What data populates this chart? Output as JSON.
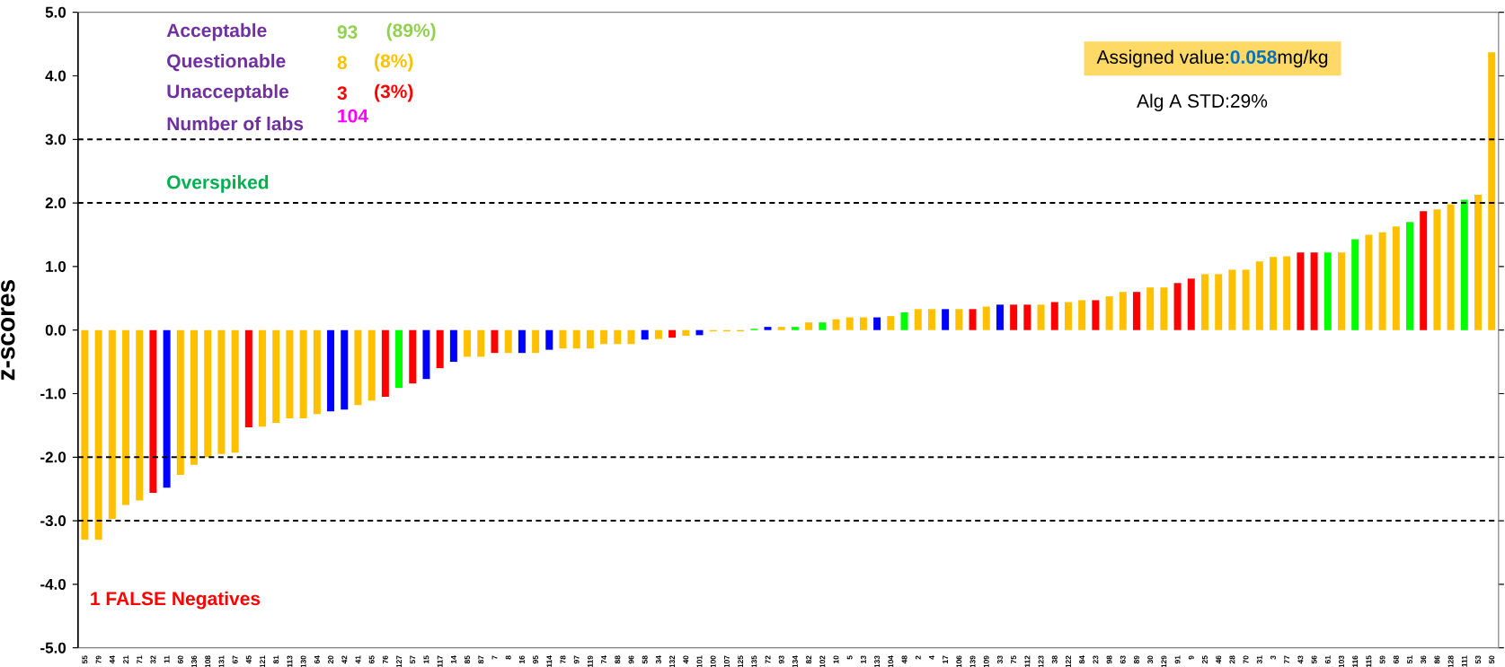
{
  "chart_data": {
    "type": "bar",
    "ylabel": "z-scores",
    "categories": [
      "55",
      "79",
      "44",
      "21",
      "71",
      "32",
      "11",
      "60",
      "136",
      "108",
      "131",
      "67",
      "45",
      "121",
      "81",
      "113",
      "130",
      "64",
      "20",
      "42",
      "41",
      "65",
      "76",
      "127",
      "57",
      "15",
      "117",
      "14",
      "85",
      "87",
      "7",
      "8",
      "16",
      "95",
      "114",
      "78",
      "97",
      "119",
      "74",
      "88",
      "96",
      "58",
      "34",
      "132",
      "40",
      "101",
      "100",
      "107",
      "125",
      "135",
      "72",
      "93",
      "134",
      "82",
      "102",
      "10",
      "5",
      "13",
      "133",
      "104",
      "48",
      "2",
      "4",
      "17",
      "106",
      "139",
      "109",
      "33",
      "75",
      "112",
      "123",
      "38",
      "122",
      "84",
      "23",
      "98",
      "63",
      "89",
      "30",
      "129",
      "91",
      "9",
      "25",
      "46",
      "28",
      "70",
      "31",
      "3",
      "77",
      "43",
      "56",
      "61",
      "103",
      "116",
      "115",
      "59",
      "68",
      "51",
      "36",
      "86",
      "128",
      "111",
      "53",
      "50"
    ],
    "values": [
      -3.3,
      -3.3,
      -2.97,
      -2.75,
      -2.68,
      -2.56,
      -2.48,
      -2.28,
      -2.12,
      -2.0,
      -1.95,
      -1.93,
      -1.53,
      -1.52,
      -1.46,
      -1.39,
      -1.39,
      -1.32,
      -1.28,
      -1.25,
      -1.18,
      -1.11,
      -1.05,
      -0.91,
      -0.84,
      -0.77,
      -0.6,
      -0.5,
      -0.42,
      -0.42,
      -0.36,
      -0.36,
      -0.36,
      -0.36,
      -0.31,
      -0.29,
      -0.29,
      -0.29,
      -0.22,
      -0.22,
      -0.22,
      -0.15,
      -0.14,
      -0.12,
      -0.09,
      -0.08,
      -0.02,
      -0.02,
      -0.02,
      0.02,
      0.05,
      0.05,
      0.05,
      0.12,
      0.12,
      0.17,
      0.2,
      0.2,
      0.2,
      0.22,
      0.28,
      0.33,
      0.33,
      0.33,
      0.33,
      0.33,
      0.37,
      0.4,
      0.4,
      0.4,
      0.4,
      0.44,
      0.44,
      0.47,
      0.47,
      0.53,
      0.6,
      0.6,
      0.67,
      0.67,
      0.74,
      0.81,
      0.88,
      0.88,
      0.95,
      0.95,
      1.08,
      1.15,
      1.16,
      1.22,
      1.22,
      1.22,
      1.22,
      1.43,
      1.5,
      1.54,
      1.63,
      1.7,
      1.87,
      1.9,
      1.98,
      2.05,
      2.13,
      4.37
    ],
    "colors": [
      "#ffc000",
      "#ffc000",
      "#ffc000",
      "#ffc000",
      "#ffc000",
      "#ff0000",
      "#0000ff",
      "#ffc000",
      "#ffc000",
      "#ffc000",
      "#ffc000",
      "#ffc000",
      "#ff0000",
      "#ffc000",
      "#ffc000",
      "#ffc000",
      "#ffc000",
      "#ffc000",
      "#0000ff",
      "#0000ff",
      "#ffc000",
      "#ffc000",
      "#ff0000",
      "#00ff00",
      "#ff0000",
      "#0000ff",
      "#ff0000",
      "#0000ff",
      "#ffc000",
      "#ffc000",
      "#ff0000",
      "#ffc000",
      "#0000ff",
      "#ffc000",
      "#0000ff",
      "#ffc000",
      "#ffc000",
      "#ffc000",
      "#ffc000",
      "#ffc000",
      "#ffc000",
      "#0000ff",
      "#ffc000",
      "#ff0000",
      "#ffc000",
      "#0000ff",
      "#ffc000",
      "#ffc000",
      "#ffc000",
      "#00ff00",
      "#0000ff",
      "#ffc000",
      "#00ff00",
      "#ffc000",
      "#00ff00",
      "#ffc000",
      "#ffc000",
      "#ffc000",
      "#0000ff",
      "#ffc000",
      "#00ff00",
      "#ffc000",
      "#ffc000",
      "#0000ff",
      "#ffc000",
      "#ff0000",
      "#ffc000",
      "#0000ff",
      "#ff0000",
      "#ff0000",
      "#ffc000",
      "#ff0000",
      "#ffc000",
      "#ffc000",
      "#ff0000",
      "#ffc000",
      "#ffc000",
      "#ff0000",
      "#ffc000",
      "#ffc000",
      "#ff0000",
      "#ff0000",
      "#ffc000",
      "#ffc000",
      "#ffc000",
      "#ffc000",
      "#ffc000",
      "#ffc000",
      "#ffc000",
      "#ff0000",
      "#ff0000",
      "#00ff00",
      "#ffc000",
      "#00ff00",
      "#ffc000",
      "#ffc000",
      "#ffc000",
      "#00ff00",
      "#ff0000",
      "#ffc000",
      "#ffc000",
      "#00ff00",
      "#ffc000",
      "#ffc000"
    ],
    "ylim": [
      -5,
      5
    ],
    "yticks": [
      {
        "value": -5,
        "label": "-5.0"
      },
      {
        "value": -4,
        "label": "-4.0"
      },
      {
        "value": -3,
        "label": "-3.0"
      },
      {
        "value": -2,
        "label": "-2.0"
      },
      {
        "value": -1,
        "label": "-1.0"
      },
      {
        "value": 0,
        "label": "0.0"
      },
      {
        "value": 1,
        "label": "1.0"
      },
      {
        "value": 2,
        "label": "2.0"
      },
      {
        "value": 3,
        "label": "3.0"
      },
      {
        "value": 4,
        "label": "4.0"
      },
      {
        "value": 5,
        "label": "5.0"
      }
    ],
    "ref_lines": [
      {
        "axis": "y",
        "value": 3,
        "color": "#000000",
        "line_style": "dashed"
      },
      {
        "axis": "y",
        "value": 2,
        "color": "#000000",
        "line_style": "dashed"
      },
      {
        "axis": "y",
        "value": -2,
        "color": "#000000",
        "line_style": "dashed"
      },
      {
        "axis": "y",
        "value": -3,
        "color": "#000000",
        "line_style": "dashed"
      }
    ],
    "annotations": [
      "Acceptable",
      "93",
      "(89%)",
      "Questionable",
      "8",
      "(8%)",
      "Unacceptable",
      "3",
      "(3%)",
      "Number of labs",
      "104",
      "Overspiked",
      "1 FALSE Negatives",
      "Assigned value:",
      "0.058",
      "mg/kg",
      "Alg A STD:29%"
    ]
  }
}
